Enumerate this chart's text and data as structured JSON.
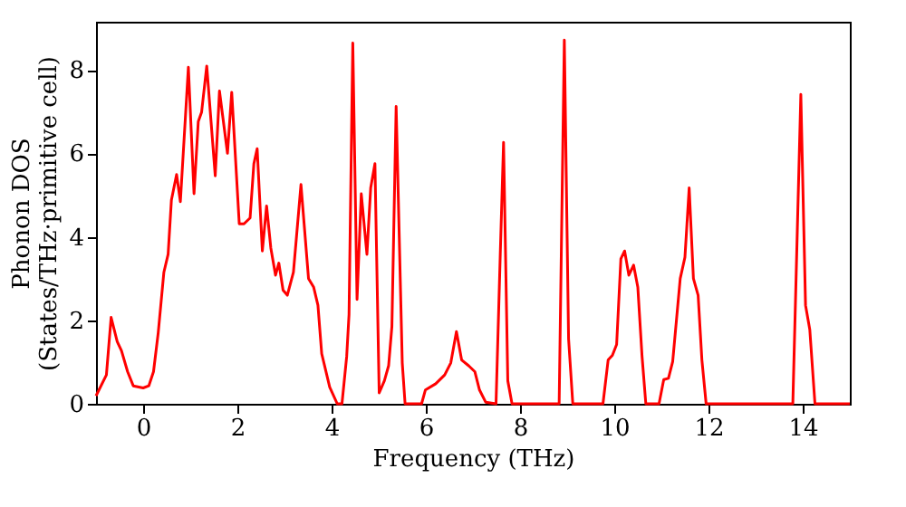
{
  "chart_data": {
    "type": "line",
    "xlabel": "Frequency (THz)",
    "ylabel": "Phonon DOS\n(States/THz·primitive cell)",
    "xlim": [
      -1,
      15
    ],
    "ylim": [
      0,
      9.15
    ],
    "xticks": [
      0,
      2,
      4,
      6,
      8,
      10,
      12,
      14
    ],
    "yticks": [
      0,
      2,
      4,
      6,
      8
    ],
    "grid": false,
    "marker": "none",
    "line_style": "solid",
    "series": [
      {
        "color": "#ff0000",
        "x": [
          -1.0,
          -0.78,
          -0.68,
          -0.55,
          -0.46,
          -0.33,
          -0.21,
          0,
          0.12,
          0.22,
          0.32,
          0.44,
          0.53,
          0.6,
          0.71,
          0.79,
          0.96,
          1.08,
          1.17,
          1.24,
          1.35,
          1.53,
          1.62,
          1.79,
          1.88,
          2.04,
          2.14,
          2.27,
          2.35,
          2.42,
          2.53,
          2.62,
          2.71,
          2.81,
          2.88,
          2.97,
          3.06,
          3.19,
          3.35,
          3.51,
          3.62,
          3.71,
          3.79,
          3.96,
          4.12,
          4.22,
          4.32,
          4.37,
          4.45,
          4.54,
          4.63,
          4.75,
          4.83,
          4.92,
          5.01,
          5.12,
          5.21,
          5.28,
          5.37,
          5.5,
          5.56,
          5.91,
          5.99,
          6.21,
          6.4,
          6.53,
          6.65,
          6.76,
          6.91,
          7.04,
          7.14,
          7.27,
          7.49,
          7.58,
          7.65,
          7.74,
          7.83,
          8.83,
          8.94,
          9.03,
          9.12,
          9.76,
          9.87,
          9.96,
          10.05,
          10.14,
          10.22,
          10.31,
          10.41,
          10.5,
          10.59,
          10.67,
          10.95,
          11.05,
          11.15,
          11.24,
          11.4,
          11.5,
          11.59,
          11.68,
          11.78,
          11.86,
          11.95,
          13.79,
          13.96,
          14.06,
          14.15,
          14.26,
          15.0
        ],
        "values": [
          0.19,
          0.69,
          2.07,
          1.49,
          1.27,
          0.77,
          0.43,
          0.38,
          0.43,
          0.77,
          1.7,
          3.15,
          3.58,
          4.88,
          5.49,
          4.84,
          8.06,
          5.03,
          6.76,
          6.98,
          8.09,
          5.46,
          7.49,
          6.0,
          7.46,
          4.31,
          4.31,
          4.45,
          5.75,
          6.11,
          3.66,
          4.74,
          3.73,
          3.08,
          3.37,
          2.72,
          2.6,
          3.15,
          5.25,
          3.0,
          2.79,
          2.36,
          1.2,
          0.4,
          0,
          0,
          1.13,
          2.14,
          8.64,
          2.5,
          5.03,
          3.58,
          5.17,
          5.75,
          0.26,
          0.55,
          0.91,
          1.85,
          7.12,
          0.98,
          0,
          0,
          0.33,
          0.48,
          0.69,
          0.98,
          1.73,
          1.05,
          0.91,
          0.77,
          0.33,
          0.04,
          0,
          3.58,
          6.26,
          0.55,
          0,
          0,
          8.71,
          1.56,
          0,
          0,
          1.05,
          1.16,
          1.42,
          3.47,
          3.66,
          3.08,
          3.32,
          2.79,
          1.13,
          0,
          0,
          0.58,
          0.61,
          1.01,
          3.0,
          3.51,
          5.17,
          3.0,
          2.6,
          1.05,
          0,
          0,
          7.41,
          2.36,
          1.78,
          0,
          0
        ]
      }
    ]
  }
}
